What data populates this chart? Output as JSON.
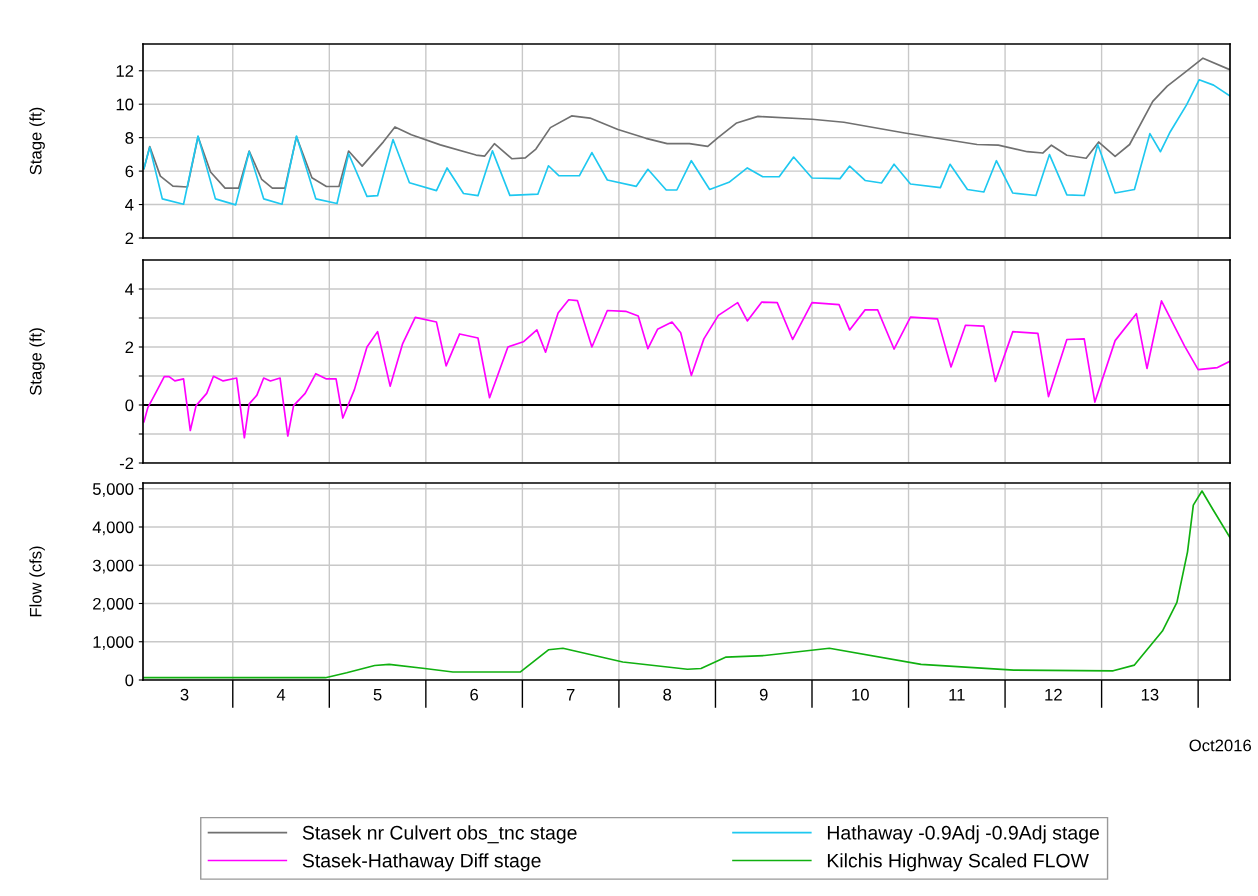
{
  "chart_data": [
    {
      "type": "line",
      "ylabel": "Stage (ft)",
      "xlim": [
        3.07,
        14.33
      ],
      "ylim": [
        2,
        13.6
      ],
      "yticks": [
        2,
        4,
        6,
        8,
        10,
        12
      ],
      "grid": true,
      "legend": "bottom",
      "tick_labels": "y",
      "xticks": [
        {
          "value": 4,
          "label": null
        },
        {
          "value": 5,
          "label": null
        },
        {
          "value": 6,
          "label": null
        },
        {
          "value": 7,
          "label": null
        },
        {
          "value": 8,
          "label": null
        },
        {
          "value": 9,
          "label": null
        },
        {
          "value": 10,
          "label": null
        },
        {
          "value": 11,
          "label": null
        },
        {
          "value": 12,
          "label": null
        },
        {
          "value": 13,
          "label": null
        },
        {
          "value": 14,
          "label": null
        }
      ],
      "series": [
        {
          "name": "Stasek nr Culvert obs_tnc stage",
          "color": "#707070",
          "x": [
            3.08,
            3.14,
            3.25,
            3.38,
            3.53,
            3.64,
            3.77,
            3.92,
            4.06,
            4.17,
            4.3,
            4.41,
            4.54,
            4.66,
            4.82,
            4.97,
            5.1,
            5.2,
            5.34,
            5.56,
            5.68,
            5.85,
            6.15,
            6.52,
            6.61,
            6.71,
            6.89,
            7.03,
            7.14,
            7.29,
            7.51,
            7.7,
            7.99,
            8.28,
            8.5,
            8.73,
            8.92,
            9.03,
            9.22,
            9.44,
            10.0,
            10.33,
            10.96,
            11.71,
            11.93,
            12.23,
            12.39,
            12.48,
            12.64,
            12.84,
            12.97,
            13.14,
            13.29,
            13.53,
            13.68,
            13.86,
            14.05,
            14.33
          ],
          "values": [
            6.15,
            7.47,
            5.7,
            5.1,
            5.05,
            8.05,
            5.95,
            4.98,
            4.98,
            7.2,
            5.5,
            4.98,
            4.98,
            8.05,
            5.6,
            5.08,
            5.08,
            7.2,
            6.3,
            7.75,
            8.64,
            8.17,
            7.57,
            6.96,
            6.9,
            7.64,
            6.74,
            6.79,
            7.32,
            8.6,
            9.3,
            9.17,
            8.49,
            7.96,
            7.64,
            7.64,
            7.48,
            8.02,
            8.88,
            9.27,
            9.1,
            8.92,
            8.28,
            7.59,
            7.55,
            7.16,
            7.08,
            7.55,
            6.95,
            6.77,
            7.74,
            6.88,
            7.59,
            10.17,
            11.08,
            11.89,
            12.75,
            12.06
          ]
        },
        {
          "name": "Hathaway -0.9Adj -0.9Adj stage",
          "color": "#1ec8f0",
          "x": [
            3.08,
            3.14,
            3.27,
            3.49,
            3.64,
            3.82,
            4.03,
            4.17,
            4.32,
            4.51,
            4.66,
            4.86,
            5.08,
            5.2,
            5.39,
            5.5,
            5.66,
            5.83,
            6.11,
            6.22,
            6.39,
            6.54,
            6.69,
            6.87,
            7.16,
            7.27,
            7.38,
            7.59,
            7.72,
            7.88,
            8.18,
            8.3,
            8.49,
            8.6,
            8.75,
            8.94,
            9.14,
            9.33,
            9.49,
            9.66,
            9.81,
            10.0,
            10.29,
            10.39,
            10.55,
            10.72,
            10.85,
            11.02,
            11.33,
            11.43,
            11.61,
            11.78,
            11.91,
            12.08,
            12.32,
            12.46,
            12.64,
            12.82,
            12.96,
            13.14,
            13.34,
            13.5,
            13.61,
            13.71,
            13.88,
            14.01,
            14.16,
            14.33
          ],
          "values": [
            6.15,
            7.43,
            4.34,
            4.02,
            8.1,
            4.34,
            3.98,
            7.17,
            4.34,
            4.02,
            8.1,
            4.34,
            4.06,
            7.04,
            4.49,
            4.53,
            7.89,
            5.3,
            4.83,
            6.19,
            4.66,
            4.53,
            7.21,
            4.55,
            4.62,
            6.32,
            5.72,
            5.72,
            7.11,
            5.47,
            5.09,
            6.11,
            4.87,
            4.87,
            6.62,
            4.9,
            5.33,
            6.19,
            5.66,
            5.66,
            6.84,
            5.59,
            5.55,
            6.3,
            5.44,
            5.29,
            6.41,
            5.23,
            5.01,
            6.41,
            4.9,
            4.75,
            6.62,
            4.69,
            4.54,
            6.99,
            4.58,
            4.54,
            7.59,
            4.69,
            4.9,
            8.24,
            7.16,
            8.34,
            9.96,
            11.46,
            11.14,
            10.49
          ]
        }
      ]
    },
    {
      "type": "line",
      "ylabel": "Stage (ft)",
      "xlim": [
        3.07,
        14.33
      ],
      "ylim": [
        -2,
        5
      ],
      "yticks": [
        -2,
        {
          "value": -1,
          "label": null
        },
        0,
        {
          "value": 1,
          "label": null
        },
        2,
        {
          "value": 3,
          "label": null
        },
        4
      ],
      "grid": true,
      "legend": "bottom",
      "tick_labels": "y",
      "xticks": [
        {
          "value": 4,
          "label": null
        },
        {
          "value": 5,
          "label": null
        },
        {
          "value": 6,
          "label": null
        },
        {
          "value": 7,
          "label": null
        },
        {
          "value": 8,
          "label": null
        },
        {
          "value": 9,
          "label": null
        },
        {
          "value": 10,
          "label": null
        },
        {
          "value": 11,
          "label": null
        },
        {
          "value": 12,
          "label": null
        },
        {
          "value": 13,
          "label": null
        },
        {
          "value": 14,
          "label": null
        }
      ],
      "ref_lines": [
        {
          "axis": "y",
          "value": 0,
          "color": "#000000"
        }
      ],
      "series": [
        {
          "name": "Stasek-Hathaway Diff stage",
          "color": "#ff00ff",
          "x": [
            3.08,
            3.12,
            3.21,
            3.29,
            3.34,
            3.4,
            3.49,
            3.56,
            3.62,
            3.73,
            3.8,
            3.9,
            4.04,
            4.12,
            4.17,
            4.25,
            4.32,
            4.39,
            4.49,
            4.57,
            4.63,
            4.75,
            4.86,
            4.97,
            5.07,
            5.14,
            5.26,
            5.39,
            5.5,
            5.63,
            5.76,
            5.89,
            6.11,
            6.21,
            6.35,
            6.54,
            6.66,
            6.85,
            7.01,
            7.15,
            7.24,
            7.37,
            7.48,
            7.57,
            7.72,
            7.88,
            8.07,
            8.2,
            8.3,
            8.4,
            8.55,
            8.64,
            8.75,
            8.88,
            9.03,
            9.23,
            9.33,
            9.48,
            9.64,
            9.8,
            10.0,
            10.28,
            10.39,
            10.55,
            10.68,
            10.85,
            11.02,
            11.3,
            11.44,
            11.59,
            11.78,
            11.9,
            12.08,
            12.34,
            12.45,
            12.64,
            12.82,
            12.93,
            13.14,
            13.36,
            13.47,
            13.62,
            13.86,
            14.0,
            14.2,
            14.33
          ],
          "values": [
            -0.58,
            -0.09,
            0.47,
            0.98,
            0.98,
            0.83,
            0.9,
            -0.88,
            -0.02,
            0.4,
            0.99,
            0.83,
            0.93,
            -1.13,
            0.04,
            0.34,
            0.93,
            0.83,
            0.93,
            -1.07,
            -0.02,
            0.4,
            1.08,
            0.9,
            0.9,
            -0.45,
            0.53,
            2.0,
            2.53,
            0.65,
            2.12,
            3.02,
            2.86,
            1.35,
            2.45,
            2.31,
            0.25,
            2.0,
            2.18,
            2.59,
            1.82,
            3.17,
            3.63,
            3.6,
            2.0,
            3.26,
            3.23,
            3.07,
            1.94,
            2.61,
            2.86,
            2.49,
            1.02,
            2.28,
            3.09,
            3.53,
            2.9,
            3.55,
            3.53,
            2.26,
            3.53,
            3.46,
            2.59,
            3.28,
            3.28,
            1.93,
            3.03,
            2.97,
            1.31,
            2.75,
            2.72,
            0.81,
            2.53,
            2.47,
            0.29,
            2.26,
            2.28,
            0.1,
            2.22,
            3.15,
            1.26,
            3.59,
            2.03,
            1.22,
            1.29,
            1.51
          ]
        }
      ]
    },
    {
      "type": "line",
      "ylabel": "Flow (cfs)",
      "xlabel": "Oct2016",
      "xlim": [
        3.07,
        14.33
      ],
      "ylim": [
        0,
        5150
      ],
      "yticks": [
        0,
        {
          "value": 1000,
          "label": "1,000"
        },
        {
          "value": 2000,
          "label": "2,000"
        },
        {
          "value": 3000,
          "label": "3,000"
        },
        {
          "value": 4000,
          "label": "4,000"
        },
        {
          "value": 5000,
          "label": "5,000"
        }
      ],
      "grid": true,
      "legend": "bottom",
      "xticks": [
        {
          "value": 3.5,
          "label": "3"
        },
        {
          "value": 4,
          "label": null
        },
        {
          "value": 4.5,
          "label": "4"
        },
        {
          "value": 5,
          "label": null
        },
        {
          "value": 5.5,
          "label": "5"
        },
        {
          "value": 6,
          "label": null
        },
        {
          "value": 6.5,
          "label": "6"
        },
        {
          "value": 7,
          "label": null
        },
        {
          "value": 7.5,
          "label": "7"
        },
        {
          "value": 8,
          "label": null
        },
        {
          "value": 8.5,
          "label": "8"
        },
        {
          "value": 9,
          "label": null
        },
        {
          "value": 9.5,
          "label": "9"
        },
        {
          "value": 10,
          "label": null
        },
        {
          "value": 10.5,
          "label": "10"
        },
        {
          "value": 11,
          "label": null
        },
        {
          "value": 11.5,
          "label": "11"
        },
        {
          "value": 12,
          "label": null
        },
        {
          "value": 12.5,
          "label": "12"
        },
        {
          "value": 13,
          "label": null
        },
        {
          "value": 13.5,
          "label": "13"
        },
        {
          "value": 14,
          "label": null
        }
      ],
      "series": [
        {
          "name": "Kilchis Highway Scaled FLOW",
          "color": "#10b010",
          "x": [
            3.08,
            4.96,
            5.18,
            5.47,
            5.62,
            5.99,
            6.28,
            6.98,
            7.27,
            7.42,
            8.04,
            8.71,
            8.85,
            9.11,
            9.51,
            10.18,
            11.13,
            12.09,
            13.12,
            13.34,
            13.63,
            13.78,
            13.89,
            13.95,
            14.04,
            14.15,
            14.33
          ],
          "values": [
            60,
            60,
            190,
            380,
            410,
            300,
            210,
            210,
            790,
            830,
            470,
            280,
            300,
            600,
            640,
            830,
            410,
            260,
            240,
            390,
            1280,
            2030,
            3350,
            4570,
            4940,
            4470,
            3720
          ]
        }
      ]
    }
  ]
}
